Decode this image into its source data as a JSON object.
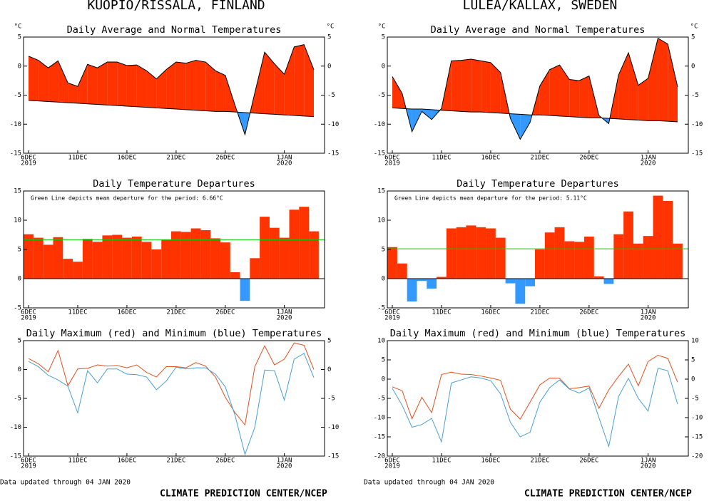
{
  "panels": [
    {
      "station": "KUOPIO/RISSALA, FINLAND",
      "updated": "Data updated through 04 JAN 2020",
      "credit": "CLIMATE PREDICTION CENTER/NCEP"
    },
    {
      "station": "LULEA/KALLAX, SWEDEN",
      "updated": "Data updated through 04 JAN 2020",
      "credit": "CLIMATE PREDICTION CENTER/NCEP"
    }
  ],
  "chart_data": [
    {
      "type": "area",
      "title": "Daily Average and Normal Temperatures",
      "categories": [
        "6DEC",
        null,
        null,
        null,
        null,
        "11DEC",
        null,
        null,
        null,
        null,
        "16DEC",
        null,
        null,
        null,
        null,
        "21DEC",
        null,
        null,
        null,
        null,
        "26DEC",
        null,
        null,
        null,
        null,
        null,
        "1JAN",
        null,
        null,
        null
      ],
      "category_years": [
        "2019",
        null,
        null,
        null,
        null,
        null,
        null,
        null,
        null,
        null,
        null,
        null,
        null,
        null,
        null,
        null,
        null,
        null,
        null,
        null,
        null,
        null,
        null,
        null,
        null,
        null,
        "2020",
        null,
        null,
        null
      ],
      "series": [
        {
          "color": "#000000",
          "values": [
            1.7,
            1.0,
            -0.3,
            0.9,
            -2.9,
            -3.5,
            0.3,
            -0.3,
            0.7,
            0.7,
            0.1,
            0.2,
            -0.8,
            -2.2,
            -0.6,
            0.7,
            0.5,
            1.0,
            0.7,
            -0.8,
            -1.6,
            -6.8,
            -11.8,
            -4.6,
            2.4,
            0.4,
            -1.4,
            3.3,
            3.7,
            -0.6
          ]
        },
        {
          "color": "#000000",
          "values": [
            -5.9,
            -6.0,
            -6.1,
            -6.2,
            -6.3,
            -6.4,
            -6.5,
            -6.6,
            -6.7,
            -6.8,
            -6.9,
            -7.0,
            -7.1,
            -7.2,
            -7.3,
            -7.4,
            -7.5,
            -7.6,
            -7.7,
            -7.8,
            -7.8,
            -7.9,
            -8.0,
            -8.1,
            -8.2,
            -8.3,
            -8.4,
            -8.5,
            -8.6,
            -8.7
          ]
        }
      ],
      "fill_colors": {
        "above": "#ff3300",
        "below": "#3399ff"
      },
      "ylabel": "°C",
      "y2label": "°C",
      "ylim": [
        -15,
        5
      ],
      "yticks": [
        -15,
        -10,
        -5,
        0,
        5
      ],
      "y2lim": [
        -15,
        5
      ],
      "y2ticks": [
        -15,
        -10,
        -5,
        0,
        5
      ]
    },
    {
      "type": "bar",
      "title": "Daily Temperature Departures",
      "categories": [
        "6DEC",
        null,
        null,
        null,
        null,
        "11DEC",
        null,
        null,
        null,
        null,
        "16DEC",
        null,
        null,
        null,
        null,
        "21DEC",
        null,
        null,
        null,
        null,
        "26DEC",
        null,
        null,
        null,
        null,
        null,
        "1JAN",
        null,
        null,
        null
      ],
      "category_years": [
        "2019",
        null,
        null,
        null,
        null,
        null,
        null,
        null,
        null,
        null,
        null,
        null,
        null,
        null,
        null,
        null,
        null,
        null,
        null,
        null,
        null,
        null,
        null,
        null,
        null,
        null,
        "2020",
        null,
        null,
        null
      ],
      "values": [
        7.6,
        7.0,
        5.8,
        7.1,
        3.4,
        2.9,
        6.8,
        6.3,
        7.4,
        7.5,
        7.0,
        7.2,
        6.3,
        5.0,
        6.7,
        8.1,
        8.0,
        8.6,
        8.3,
        6.9,
        6.2,
        1.1,
        -3.8,
        3.5,
        10.6,
        8.7,
        7.0,
        11.8,
        12.3,
        8.1
      ],
      "colors": {
        "positive": "#ff3300",
        "negative": "#3399ff"
      },
      "mean_line": {
        "value": 6.66,
        "color": "#00cc00"
      },
      "annotation": "Green Line depicts mean departure for the period: 6.66°C",
      "ylim": [
        -5,
        15
      ],
      "yticks": [
        -5,
        0,
        5,
        10,
        15
      ]
    },
    {
      "type": "line",
      "title": "Daily Maximum (red) and Minimum (blue) Temperatures",
      "categories": [
        "6DEC",
        null,
        null,
        null,
        null,
        "11DEC",
        null,
        null,
        null,
        null,
        "16DEC",
        null,
        null,
        null,
        null,
        "21DEC",
        null,
        null,
        null,
        null,
        "26DEC",
        null,
        null,
        null,
        null,
        null,
        "1JAN",
        null,
        null,
        null
      ],
      "category_years": [
        "2019",
        null,
        null,
        null,
        null,
        null,
        null,
        null,
        null,
        null,
        null,
        null,
        null,
        null,
        null,
        null,
        null,
        null,
        null,
        null,
        null,
        null,
        null,
        null,
        null,
        null,
        "2020",
        null,
        null,
        null
      ],
      "series": [
        {
          "color": "#e05020",
          "values": [
            1.9,
            1.0,
            -0.4,
            3.3,
            -2.8,
            0.1,
            0.2,
            0.8,
            0.6,
            0.7,
            0.3,
            0.8,
            -0.5,
            -1.3,
            0.5,
            0.5,
            0.3,
            1.2,
            0.6,
            -1.3,
            -4.8,
            -7.5,
            -9.6,
            0.5,
            4.1,
            0.8,
            1.8,
            4.6,
            4.2,
            0.0
          ]
        },
        {
          "color": "#4a9fd0",
          "values": [
            1.4,
            0.5,
            -1.0,
            -1.8,
            -2.9,
            -7.5,
            -0.2,
            -2.3,
            0.1,
            0.1,
            -0.8,
            -0.9,
            -1.3,
            -3.5,
            -2.0,
            0.4,
            0.1,
            0.3,
            0.3,
            -0.8,
            -3.0,
            -8.0,
            -14.7,
            -10.0,
            -0.1,
            -0.2,
            -5.3,
            1.8,
            2.8,
            -1.4
          ]
        }
      ],
      "ylim": [
        -15,
        5
      ],
      "yticks": [
        -15,
        -10,
        -5,
        0,
        5
      ],
      "y2lim": [
        -15,
        5
      ],
      "y2ticks": [
        -15,
        -10,
        -5,
        0,
        5
      ]
    },
    {
      "type": "area",
      "title": "Daily Average and Normal Temperatures",
      "categories": [
        "6DEC",
        null,
        null,
        null,
        null,
        "11DEC",
        null,
        null,
        null,
        null,
        "16DEC",
        null,
        null,
        null,
        null,
        "21DEC",
        null,
        null,
        null,
        null,
        "26DEC",
        null,
        null,
        null,
        null,
        null,
        "1JAN",
        null,
        null,
        null
      ],
      "category_years": [
        "2019",
        null,
        null,
        null,
        null,
        null,
        null,
        null,
        null,
        null,
        null,
        null,
        null,
        null,
        null,
        null,
        null,
        null,
        null,
        null,
        null,
        null,
        null,
        null,
        null,
        null,
        "2020",
        null,
        null,
        null
      ],
      "series": [
        {
          "color": "#000000",
          "values": [
            -1.8,
            -4.7,
            -11.3,
            -7.8,
            -9.2,
            -7.3,
            0.9,
            1.0,
            1.2,
            0.9,
            0.6,
            -1.1,
            -9.0,
            -12.6,
            -9.7,
            -3.4,
            -0.6,
            0.2,
            -2.3,
            -2.5,
            -1.7,
            -8.5,
            -9.9,
            -1.5,
            2.3,
            -3.3,
            -2.1,
            4.8,
            3.8,
            -3.6
          ]
        },
        {
          "color": "#000000",
          "values": [
            -7.2,
            -7.3,
            -7.4,
            -7.4,
            -7.5,
            -7.6,
            -7.7,
            -7.8,
            -7.9,
            -7.9,
            -8.0,
            -8.1,
            -8.2,
            -8.3,
            -8.4,
            -8.4,
            -8.5,
            -8.6,
            -8.7,
            -8.8,
            -8.9,
            -8.9,
            -9.0,
            -9.1,
            -9.2,
            -9.3,
            -9.4,
            -9.4,
            -9.5,
            -9.6
          ]
        }
      ],
      "fill_colors": {
        "above": "#ff3300",
        "below": "#3399ff"
      },
      "ylabel": "°C",
      "y2label": "°C",
      "ylim": [
        -15,
        5
      ],
      "yticks": [
        -15,
        -10,
        -5,
        0,
        5
      ],
      "y2lim": [
        -15,
        5
      ],
      "y2ticks": [
        -15,
        -10,
        -5,
        0,
        5
      ]
    },
    {
      "type": "bar",
      "title": "Daily Temperature Departures",
      "categories": [
        "6DEC",
        null,
        null,
        null,
        null,
        "11DEC",
        null,
        null,
        null,
        null,
        "16DEC",
        null,
        null,
        null,
        null,
        "21DEC",
        null,
        null,
        null,
        null,
        "26DEC",
        null,
        null,
        null,
        null,
        null,
        "1JAN",
        null,
        null,
        null
      ],
      "category_years": [
        "2019",
        null,
        null,
        null,
        null,
        null,
        null,
        null,
        null,
        null,
        null,
        null,
        null,
        null,
        null,
        null,
        null,
        null,
        null,
        null,
        null,
        null,
        null,
        null,
        null,
        null,
        "2020",
        null,
        null,
        null
      ],
      "values": [
        5.4,
        2.6,
        -3.9,
        -0.4,
        -1.7,
        0.3,
        8.6,
        8.8,
        9.1,
        8.8,
        8.6,
        7.0,
        -0.8,
        -4.3,
        -1.3,
        5.0,
        7.9,
        8.8,
        6.4,
        6.3,
        7.2,
        0.4,
        -0.9,
        7.6,
        11.5,
        6.0,
        7.3,
        14.2,
        13.3,
        6.0
      ],
      "colors": {
        "positive": "#ff3300",
        "negative": "#3399ff"
      },
      "mean_line": {
        "value": 5.11,
        "color": "#00cc00"
      },
      "annotation": "Green Line depicts mean departure for the period: 5.11°C",
      "ylim": [
        -5,
        15
      ],
      "yticks": [
        -5,
        0,
        5,
        10,
        15
      ]
    },
    {
      "type": "line",
      "title": "Daily Maximum (red) and Minimum (blue) Temperatures",
      "categories": [
        "6DEC",
        null,
        null,
        null,
        null,
        "11DEC",
        null,
        null,
        null,
        null,
        "16DEC",
        null,
        null,
        null,
        null,
        "21DEC",
        null,
        null,
        null,
        null,
        "26DEC",
        null,
        null,
        null,
        null,
        null,
        "1JAN",
        null,
        null,
        null
      ],
      "category_years": [
        "2019",
        null,
        null,
        null,
        null,
        null,
        null,
        null,
        null,
        null,
        null,
        null,
        null,
        null,
        null,
        null,
        null,
        null,
        null,
        null,
        null,
        null,
        null,
        null,
        null,
        null,
        "2020",
        null,
        null,
        null
      ],
      "series": [
        {
          "color": "#e05020",
          "values": [
            -2.0,
            -3.0,
            -10.3,
            -4.7,
            -8.7,
            1.2,
            1.8,
            1.3,
            1.2,
            0.8,
            0.3,
            -0.3,
            -7.8,
            -10.4,
            -6.0,
            -1.5,
            0.3,
            0.2,
            -2.5,
            -2.2,
            -1.8,
            -7.6,
            -2.8,
            0.7,
            3.9,
            -1.7,
            4.6,
            6.2,
            5.4,
            -0.8
          ]
        },
        {
          "color": "#4a9fd0",
          "values": [
            -2.4,
            -6.8,
            -12.5,
            -11.8,
            -10.2,
            -16.3,
            -1.0,
            -0.2,
            0.6,
            0.3,
            -0.4,
            -3.8,
            -11.2,
            -15.0,
            -13.8,
            -6.0,
            -2.2,
            -0.2,
            -2.6,
            -3.6,
            -2.3,
            -10.0,
            -17.5,
            -4.5,
            0.2,
            -5.0,
            -8.3,
            2.8,
            2.2,
            -6.5
          ]
        }
      ],
      "ylim": [
        -20,
        10
      ],
      "yticks": [
        -20,
        -15,
        -10,
        -5,
        0,
        5,
        10
      ],
      "y2lim": [
        -20,
        10
      ],
      "y2ticks": [
        -20,
        -15,
        -10,
        -5,
        0,
        5,
        10
      ]
    }
  ]
}
